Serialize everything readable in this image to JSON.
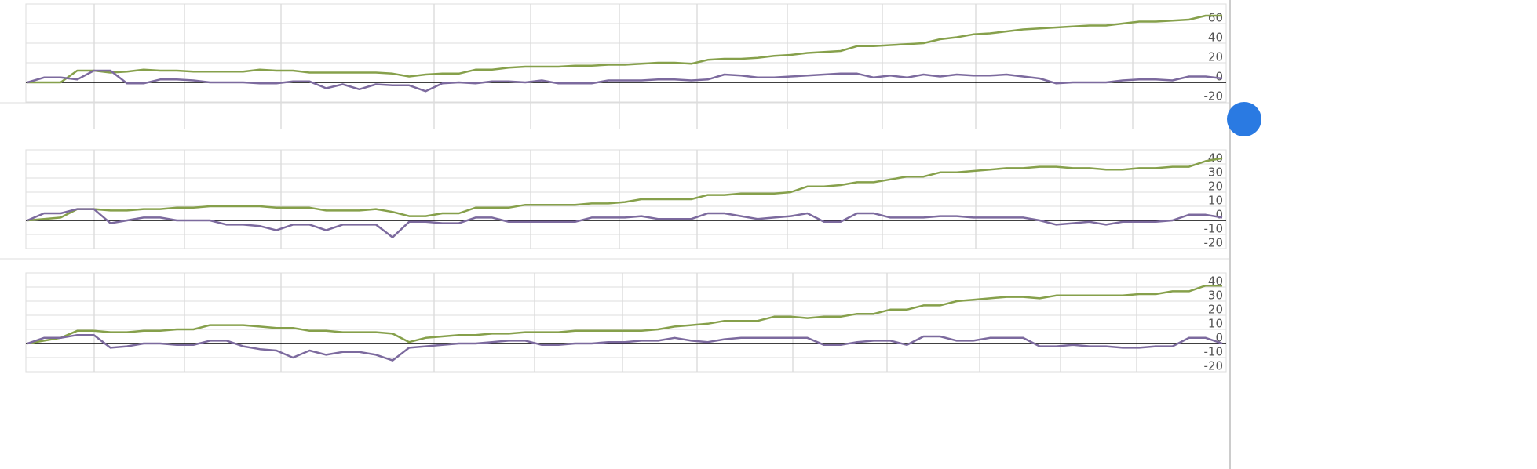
{
  "charts": [
    {
      "chart_data": {
        "type": "line",
        "ylim": [
          -20,
          80
        ],
        "yticks": [
          -20,
          0,
          20,
          40,
          60
        ],
        "grid": true,
        "series": [
          {
            "color": "#86a04b",
            "values": [
              0,
              0,
              0,
              12,
              12,
              10,
              11,
              13,
              12,
              12,
              11,
              11,
              11,
              11,
              13,
              12,
              12,
              10,
              10,
              10,
              10,
              10,
              9,
              6,
              8,
              9,
              9,
              13,
              13,
              15,
              16,
              16,
              16,
              17,
              17,
              18,
              18,
              19,
              20,
              20,
              19,
              23,
              24,
              24,
              25,
              27,
              28,
              30,
              31,
              32,
              37,
              37,
              38,
              39,
              40,
              44,
              46,
              49,
              50,
              52,
              54,
              55,
              56,
              57,
              58,
              58,
              60,
              62,
              62,
              63,
              64,
              68,
              68
            ]
          },
          {
            "color": "#7c6a9e",
            "values": [
              0,
              5,
              5,
              3,
              12,
              12,
              -1,
              -1,
              3,
              3,
              2,
              0,
              0,
              0,
              -1,
              -1,
              1,
              1,
              -6,
              -2,
              -7,
              -2,
              -3,
              -3,
              -9,
              -1,
              0,
              -1,
              1,
              1,
              0,
              2,
              -1,
              -1,
              -1,
              2,
              2,
              2,
              3,
              3,
              2,
              3,
              8,
              7,
              5,
              5,
              6,
              7,
              8,
              9,
              9,
              5,
              7,
              5,
              8,
              6,
              8,
              7,
              7,
              8,
              6,
              4,
              -1,
              0,
              0,
              0,
              2,
              3,
              3,
              2,
              6,
              6,
              4
            ]
          }
        ]
      }
    },
    {
      "chart_data": {
        "type": "line",
        "ylim": [
          -20,
          50
        ],
        "yticks": [
          -20,
          -10,
          0,
          10,
          20,
          30,
          40
        ],
        "grid": true,
        "series": [
          {
            "color": "#86a04b",
            "values": [
              0,
              1,
              2,
              8,
              8,
              7,
              7,
              8,
              8,
              9,
              9,
              10,
              10,
              10,
              10,
              9,
              9,
              9,
              7,
              7,
              7,
              8,
              6,
              3,
              3,
              5,
              5,
              9,
              9,
              9,
              11,
              11,
              11,
              11,
              12,
              12,
              13,
              15,
              15,
              15,
              15,
              18,
              18,
              19,
              19,
              19,
              20,
              24,
              24,
              25,
              27,
              27,
              29,
              31,
              31,
              34,
              34,
              35,
              36,
              37,
              37,
              38,
              38,
              37,
              37,
              36,
              36,
              37,
              37,
              38,
              38,
              42,
              44
            ]
          },
          {
            "color": "#7c6a9e",
            "values": [
              0,
              5,
              5,
              8,
              8,
              -2,
              0,
              2,
              2,
              0,
              0,
              0,
              -3,
              -3,
              -4,
              -7,
              -3,
              -3,
              -7,
              -3,
              -3,
              -3,
              -12,
              -1,
              -1,
              -2,
              -2,
              2,
              2,
              -1,
              -1,
              -1,
              -1,
              -1,
              2,
              2,
              2,
              3,
              1,
              1,
              1,
              5,
              5,
              3,
              1,
              2,
              3,
              5,
              -1,
              -1,
              5,
              5,
              2,
              2,
              2,
              3,
              3,
              2,
              2,
              2,
              2,
              0,
              -3,
              -2,
              -1,
              -3,
              -1,
              -1,
              -1,
              0,
              4,
              4,
              2
            ]
          }
        ]
      }
    },
    {
      "chart_data": {
        "type": "line",
        "ylim": [
          -20,
          50
        ],
        "yticks": [
          -20,
          -10,
          0,
          10,
          20,
          30,
          40
        ],
        "grid": true,
        "series": [
          {
            "color": "#86a04b",
            "values": [
              0,
              2,
              4,
              9,
              9,
              8,
              8,
              9,
              9,
              10,
              10,
              13,
              13,
              13,
              12,
              11,
              11,
              9,
              9,
              8,
              8,
              8,
              7,
              1,
              4,
              5,
              6,
              6,
              7,
              7,
              8,
              8,
              8,
              9,
              9,
              9,
              9,
              9,
              10,
              12,
              13,
              14,
              16,
              16,
              16,
              19,
              19,
              18,
              19,
              19,
              21,
              21,
              24,
              24,
              27,
              27,
              30,
              31,
              32,
              33,
              33,
              32,
              34,
              34,
              34,
              34,
              34,
              35,
              35,
              37,
              37,
              41,
              41
            ]
          },
          {
            "color": "#7c6a9e",
            "values": [
              0,
              4,
              4,
              6,
              6,
              -3,
              -2,
              0,
              0,
              -1,
              -1,
              2,
              2,
              -2,
              -4,
              -5,
              -10,
              -5,
              -8,
              -6,
              -6,
              -8,
              -12,
              -3,
              -2,
              -1,
              0,
              0,
              1,
              2,
              2,
              -1,
              -1,
              0,
              0,
              1,
              1,
              2,
              2,
              4,
              2,
              1,
              3,
              4,
              4,
              4,
              4,
              4,
              -1,
              -1,
              1,
              2,
              2,
              -1,
              5,
              5,
              2,
              2,
              4,
              4,
              4,
              -2,
              -2,
              -1,
              -2,
              -2,
              -3,
              -3,
              -2,
              -2,
              4,
              4,
              0
            ]
          }
        ]
      }
    }
  ]
}
